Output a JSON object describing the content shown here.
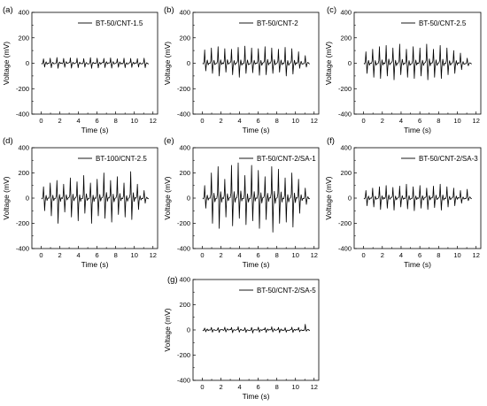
{
  "chart_data": [
    {
      "type": "line",
      "panel_label": "(a)",
      "xlabel": "Time (s)",
      "ylabel": "Voltage (mV)",
      "xlim": [
        -1,
        12.5
      ],
      "ylim": [
        -400,
        400
      ],
      "xticks": [
        0,
        2,
        4,
        6,
        8,
        10,
        12
      ],
      "yticks": [
        -400,
        -200,
        0,
        200,
        400
      ],
      "legend_position": "top-right",
      "series": [
        {
          "name": "BT-50/CNT-1.5",
          "color": "#000000",
          "period_s": 0.72,
          "t_start": 0.05,
          "t_end": 11.4,
          "peak_values_mV": [
            35,
            40,
            45,
            38,
            42,
            40,
            36,
            44,
            40,
            38,
            42,
            35,
            40,
            38,
            36,
            40
          ],
          "trough_values_mV": [
            -30,
            -35,
            -40,
            -32,
            -38,
            -35,
            -30,
            -40,
            -36,
            -34,
            -38,
            -32,
            -35,
            -33,
            -30,
            -35
          ]
        }
      ]
    },
    {
      "type": "line",
      "panel_label": "(b)",
      "xlabel": "Time (s)",
      "ylabel": "Voltage (mV)",
      "xlim": [
        -1,
        12.5
      ],
      "ylim": [
        -400,
        400
      ],
      "xticks": [
        0,
        2,
        4,
        6,
        8,
        10,
        12
      ],
      "yticks": [
        -400,
        -200,
        0,
        200,
        400
      ],
      "legend_position": "top-right",
      "series": [
        {
          "name": "BT-50/CNT-2",
          "color": "#000000",
          "period_s": 0.72,
          "t_start": 0.05,
          "t_end": 11.4,
          "peak_values_mV": [
            105,
            120,
            130,
            115,
            110,
            125,
            135,
            120,
            115,
            130,
            120,
            110,
            125,
            115,
            90,
            60
          ],
          "trough_values_mV": [
            -60,
            -80,
            -100,
            -70,
            -90,
            -110,
            -80,
            -75,
            -95,
            -90,
            -80,
            -70,
            -100,
            -85,
            -40,
            -30
          ]
        }
      ]
    },
    {
      "type": "line",
      "panel_label": "(c)",
      "xlabel": "Time (s)",
      "ylabel": "Voltage (mV)",
      "xlim": [
        -1,
        12.5
      ],
      "ylim": [
        -400,
        400
      ],
      "xticks": [
        0,
        2,
        4,
        6,
        8,
        10,
        12
      ],
      "yticks": [
        -400,
        -200,
        0,
        200,
        400
      ],
      "legend_position": "top-right",
      "series": [
        {
          "name": "BT-50/CNT-2.5",
          "color": "#000000",
          "period_s": 0.72,
          "t_start": 0.05,
          "t_end": 11.4,
          "peak_values_mV": [
            90,
            110,
            130,
            140,
            120,
            150,
            110,
            130,
            120,
            150,
            110,
            140,
            120,
            100,
            80,
            40
          ],
          "trough_values_mV": [
            -80,
            -110,
            -120,
            -100,
            -130,
            -90,
            -110,
            -120,
            -100,
            -130,
            -110,
            -120,
            -90,
            -80,
            -50,
            -20
          ]
        }
      ]
    },
    {
      "type": "line",
      "panel_label": "(d)",
      "xlabel": "Time (s)",
      "ylabel": "Voltage (mV)",
      "xlim": [
        -1,
        12.5
      ],
      "ylim": [
        -400,
        400
      ],
      "xticks": [
        0,
        2,
        4,
        6,
        8,
        10,
        12
      ],
      "yticks": [
        -400,
        -200,
        0,
        200,
        400
      ],
      "legend_position": "top-right",
      "series": [
        {
          "name": "BT-100/CNT-2.5",
          "color": "#000000",
          "period_s": 0.72,
          "t_start": 0.05,
          "t_end": 11.4,
          "peak_values_mV": [
            90,
            120,
            140,
            110,
            160,
            130,
            180,
            120,
            150,
            200,
            140,
            170,
            120,
            210,
            110,
            60
          ],
          "trough_values_mV": [
            -100,
            -140,
            -200,
            -110,
            -150,
            -180,
            -120,
            -200,
            -140,
            -160,
            -190,
            -130,
            -150,
            -170,
            -90,
            -40
          ]
        }
      ]
    },
    {
      "type": "line",
      "panel_label": "(e)",
      "xlabel": "Time (s)",
      "ylabel": "Voltage (mV)",
      "xlim": [
        -1,
        12.5
      ],
      "ylim": [
        -400,
        400
      ],
      "xticks": [
        0,
        2,
        4,
        6,
        8,
        10,
        12
      ],
      "yticks": [
        -400,
        -200,
        0,
        200,
        400
      ],
      "legend_position": "top-right",
      "series": [
        {
          "name": "BT-50/CNT-2/SA-1",
          "color": "#000000",
          "period_s": 0.72,
          "t_start": 0.05,
          "t_end": 11.4,
          "peak_values_mV": [
            100,
            200,
            250,
            150,
            260,
            280,
            180,
            260,
            220,
            170,
            250,
            230,
            160,
            200,
            150,
            80
          ],
          "trough_values_mV": [
            -80,
            -200,
            -240,
            -150,
            -220,
            -160,
            -210,
            -180,
            -240,
            -170,
            -270,
            -200,
            -190,
            -230,
            -120,
            -50
          ]
        }
      ]
    },
    {
      "type": "line",
      "panel_label": "(f)",
      "xlabel": "Time (s)",
      "ylabel": "Voltage (mV)",
      "xlim": [
        -1,
        12.5
      ],
      "ylim": [
        -400,
        400
      ],
      "xticks": [
        0,
        2,
        4,
        6,
        8,
        10,
        12
      ],
      "yticks": [
        -400,
        -200,
        0,
        200,
        400
      ],
      "legend_position": "top-right",
      "series": [
        {
          "name": "BT-50/CNT-2/SA-3",
          "color": "#000000",
          "period_s": 0.72,
          "t_start": 0.05,
          "t_end": 11.4,
          "peak_values_mV": [
            60,
            80,
            90,
            100,
            85,
            95,
            110,
            90,
            100,
            80,
            95,
            110,
            90,
            80,
            60,
            70
          ],
          "trough_values_mV": [
            -60,
            -70,
            -90,
            -80,
            -95,
            -70,
            -85,
            -100,
            -80,
            -90,
            -75,
            -95,
            -70,
            -60,
            -40,
            -20
          ]
        }
      ]
    },
    {
      "type": "line",
      "panel_label": "(g)",
      "xlabel": "Time (s)",
      "ylabel": "Voltage (mV)",
      "xlim": [
        -1,
        12.5
      ],
      "ylim": [
        -400,
        400
      ],
      "xticks": [
        0,
        2,
        4,
        6,
        8,
        10,
        12
      ],
      "yticks": [
        -400,
        -200,
        0,
        200,
        400
      ],
      "legend_position": "top-right",
      "series": [
        {
          "name": "BT-50/CNT-2/SA-5",
          "color": "#000000",
          "period_s": 0.72,
          "t_start": 0.05,
          "t_end": 11.4,
          "peak_values_mV": [
            15,
            20,
            18,
            22,
            20,
            25,
            18,
            20,
            22,
            18,
            25,
            20,
            18,
            22,
            20,
            45
          ],
          "trough_values_mV": [
            -15,
            -18,
            -20,
            -16,
            -22,
            -18,
            -20,
            -24,
            -18,
            -20,
            -16,
            -22,
            -18,
            -20,
            -15,
            -10
          ]
        }
      ]
    }
  ]
}
